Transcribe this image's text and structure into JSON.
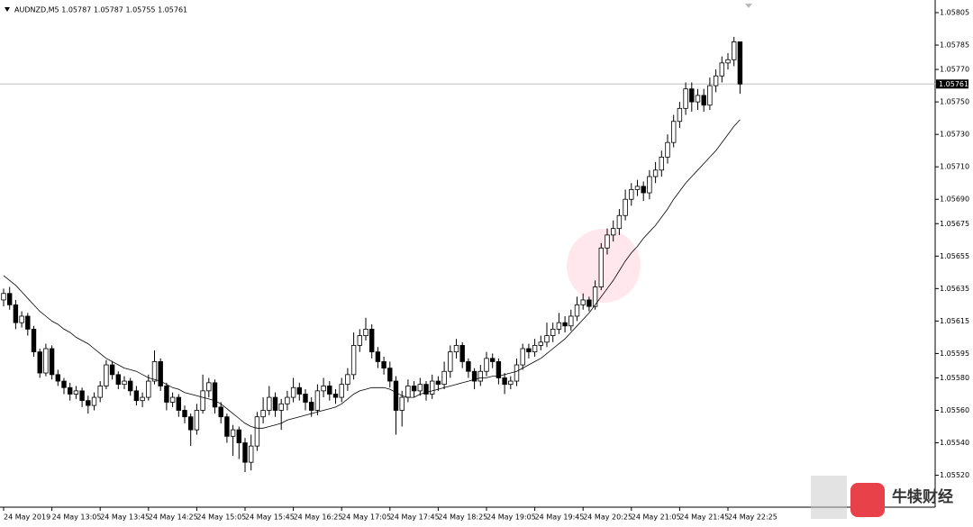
{
  "chart_data": {
    "type": "candlestick",
    "title": "AUDNZD,M5  1.05787 1.05787 1.05755 1.05761",
    "categories": [
      "24 May 2019",
      null,
      null,
      null,
      null,
      null,
      null,
      null,
      "24 May 13:05",
      null,
      null,
      null,
      null,
      null,
      null,
      null,
      "24 May 13:45",
      null,
      null,
      null,
      null,
      null,
      null,
      null,
      "24 May 14:25",
      null,
      null,
      null,
      null,
      null,
      null,
      null,
      "24 May 15:05",
      null,
      null,
      null,
      null,
      null,
      null,
      null,
      "24 May 15:45",
      null,
      null,
      null,
      null,
      null,
      null,
      null,
      "24 May 16:25",
      null,
      null,
      null,
      null,
      null,
      null,
      null,
      "24 May 17:05",
      null,
      null,
      null,
      null,
      null,
      null,
      null,
      "24 May 17:45",
      null,
      null,
      null,
      null,
      null,
      null,
      null,
      "24 May 18:25",
      null,
      null,
      null,
      null,
      null,
      null,
      null,
      "24 May 19:05",
      null,
      null,
      null,
      null,
      null,
      null,
      null,
      "24 May 19:45",
      null,
      null,
      null,
      null,
      null,
      null,
      null,
      "24 May 20:25",
      null,
      null,
      null,
      null,
      null,
      null,
      null,
      "24 May 21:05",
      null,
      null,
      null,
      null,
      null,
      null,
      null,
      "24 May 21:45",
      null,
      null,
      null,
      null,
      null,
      null,
      null,
      "24 May 22:25",
      null,
      null
    ],
    "open": [
      1.05628,
      1.05632,
      1.05625,
      1.05614,
      1.05618,
      1.0561,
      1.05596,
      1.05583,
      1.05598,
      1.05582,
      1.05578,
      1.05574,
      1.0557,
      1.05572,
      1.05566,
      1.05563,
      1.05568,
      1.05575,
      1.05588,
      1.05582,
      1.05576,
      1.05578,
      1.05572,
      1.05566,
      1.05568,
      1.05578,
      1.0559,
      1.05575,
      1.05565,
      1.05568,
      1.0556,
      1.05556,
      1.05548,
      1.0556,
      1.05572,
      1.05577,
      1.05562,
      1.05556,
      1.05544,
      1.05548,
      1.0554,
      1.05528,
      1.05538,
      1.05556,
      1.0556,
      1.05568,
      1.0556,
      1.05564,
      1.05568,
      1.05574,
      1.0557,
      1.05565,
      1.0556,
      1.05572,
      1.05575,
      1.0557,
      1.05568,
      1.05576,
      1.05582,
      1.056,
      1.05606,
      1.0561,
      1.05596,
      1.0559,
      1.05586,
      1.05578,
      1.0556,
      1.05568,
      1.05575,
      1.05572,
      1.05576,
      1.0557,
      1.05578,
      1.05576,
      1.05584,
      1.05596,
      1.056,
      1.0559,
      1.05584,
      1.05578,
      1.05584,
      1.05592,
      1.0559,
      1.0558,
      1.05576,
      1.05578,
      1.05588,
      1.05598,
      1.05596,
      1.056,
      1.05602,
      1.05606,
      1.0561,
      1.05614,
      1.05612,
      1.05618,
      1.05625,
      1.05628,
      1.05624,
      1.05636,
      1.0566,
      1.05668,
      1.05672,
      1.0568,
      1.0569,
      1.05696,
      1.05698,
      1.05694,
      1.05704,
      1.05708,
      1.05716,
      1.05725,
      1.05738,
      1.05746,
      1.05758,
      1.0575,
      1.05754,
      1.05748,
      1.0576,
      1.05766,
      1.05774,
      1.05776,
      1.05787
    ],
    "high": [
      1.05635,
      1.05636,
      1.05628,
      1.05621,
      1.0562,
      1.05612,
      1.05598,
      1.05601,
      1.056,
      1.05585,
      1.0558,
      1.05577,
      1.05575,
      1.05574,
      1.05569,
      1.05571,
      1.05578,
      1.05591,
      1.0559,
      1.05584,
      1.05581,
      1.0558,
      1.05575,
      1.05571,
      1.05582,
      1.05597,
      1.05592,
      1.05577,
      1.05571,
      1.0557,
      1.05563,
      1.05558,
      1.05564,
      1.05582,
      1.0558,
      1.05579,
      1.05565,
      1.05558,
      1.05551,
      1.0555,
      1.05543,
      1.05545,
      1.05559,
      1.05568,
      1.05575,
      1.05571,
      1.05567,
      1.05572,
      1.0558,
      1.05577,
      1.05573,
      1.05568,
      1.05576,
      1.0558,
      1.05578,
      1.05573,
      1.0558,
      1.05586,
      1.05608,
      1.0561,
      1.05617,
      1.05613,
      1.05599,
      1.05593,
      1.0559,
      1.05581,
      1.05572,
      1.05579,
      1.05578,
      1.0558,
      1.05578,
      1.05582,
      1.05581,
      1.0559,
      1.056,
      1.05604,
      1.05602,
      1.05592,
      1.05586,
      1.05588,
      1.05596,
      1.05595,
      1.05592,
      1.05583,
      1.05581,
      1.05592,
      1.05601,
      1.05601,
      1.05604,
      1.05606,
      1.05614,
      1.05614,
      1.0562,
      1.05618,
      1.05622,
      1.0563,
      1.05632,
      1.0563,
      1.0564,
      1.05663,
      1.05672,
      1.05677,
      1.05684,
      1.05696,
      1.057,
      1.05702,
      1.05701,
      1.05708,
      1.05713,
      1.0572,
      1.0573,
      1.05742,
      1.0575,
      1.05762,
      1.05762,
      1.05758,
      1.05758,
      1.05765,
      1.0577,
      1.05778,
      1.0578,
      1.0579,
      1.05787
    ],
    "low": [
      1.05624,
      1.05622,
      1.0561,
      1.05611,
      1.05606,
      1.05593,
      1.0558,
      1.05581,
      1.05579,
      1.05575,
      1.0557,
      1.05566,
      1.05567,
      1.05562,
      1.05558,
      1.0556,
      1.05565,
      1.05573,
      1.05579,
      1.05573,
      1.05573,
      1.05569,
      1.05563,
      1.05562,
      1.05566,
      1.05576,
      1.05572,
      1.0556,
      1.05562,
      1.05556,
      1.05552,
      1.05538,
      1.05545,
      1.05558,
      1.05568,
      1.05558,
      1.05552,
      1.0554,
      1.05532,
      1.0553,
      1.05522,
      1.05523,
      1.05535,
      1.05552,
      1.05557,
      1.05556,
      1.05548,
      1.0556,
      1.05565,
      1.05566,
      1.0556,
      1.05556,
      1.05557,
      1.05568,
      1.05566,
      1.05564,
      1.05565,
      1.05572,
      1.05579,
      1.05596,
      1.05603,
      1.05592,
      1.05586,
      1.05582,
      1.05574,
      1.05545,
      1.0555,
      1.05565,
      1.05568,
      1.05569,
      1.05566,
      1.05567,
      1.05572,
      1.05573,
      1.0558,
      1.05592,
      1.05586,
      1.0558,
      1.05573,
      1.05575,
      1.05581,
      1.05586,
      1.05576,
      1.0557,
      1.05573,
      1.05575,
      1.05585,
      1.05592,
      1.05593,
      1.05597,
      1.05599,
      1.05602,
      1.05607,
      1.05608,
      1.05609,
      1.05615,
      1.05622,
      1.05621,
      1.05622,
      1.05634,
      1.05656,
      1.05664,
      1.05668,
      1.05677,
      1.05686,
      1.05692,
      1.05689,
      1.0569,
      1.057,
      1.05704,
      1.05712,
      1.05722,
      1.05734,
      1.05742,
      1.05744,
      1.05745,
      1.05744,
      1.05745,
      1.05756,
      1.05762,
      1.0577,
      1.05772,
      1.05755
    ],
    "close": [
      1.05632,
      1.05625,
      1.05614,
      1.05618,
      1.0561,
      1.05596,
      1.05583,
      1.05598,
      1.05582,
      1.05578,
      1.05574,
      1.0557,
      1.05572,
      1.05566,
      1.05563,
      1.05568,
      1.05575,
      1.05588,
      1.05582,
      1.05576,
      1.05578,
      1.05572,
      1.05566,
      1.05568,
      1.05578,
      1.0559,
      1.05575,
      1.05565,
      1.05568,
      1.0556,
      1.05556,
      1.05548,
      1.0556,
      1.05572,
      1.05577,
      1.05562,
      1.05556,
      1.05544,
      1.05548,
      1.0554,
      1.05528,
      1.05538,
      1.05556,
      1.0556,
      1.05568,
      1.0556,
      1.05564,
      1.05568,
      1.05574,
      1.0557,
      1.05565,
      1.0556,
      1.05572,
      1.05575,
      1.0557,
      1.05568,
      1.05576,
      1.05582,
      1.056,
      1.05606,
      1.0561,
      1.05596,
      1.0559,
      1.05586,
      1.05578,
      1.0556,
      1.05568,
      1.05575,
      1.05572,
      1.05576,
      1.0557,
      1.05578,
      1.05576,
      1.05584,
      1.05596,
      1.056,
      1.0559,
      1.05584,
      1.05578,
      1.05584,
      1.05592,
      1.0559,
      1.0558,
      1.05576,
      1.05578,
      1.05588,
      1.05598,
      1.05596,
      1.056,
      1.05602,
      1.05606,
      1.0561,
      1.05614,
      1.05612,
      1.05618,
      1.05625,
      1.05628,
      1.05624,
      1.05636,
      1.0566,
      1.05668,
      1.05672,
      1.0568,
      1.0569,
      1.05696,
      1.05698,
      1.05694,
      1.05704,
      1.05708,
      1.05716,
      1.05725,
      1.05738,
      1.05746,
      1.05758,
      1.0575,
      1.05754,
      1.05748,
      1.0576,
      1.05766,
      1.05774,
      1.05776,
      1.05787,
      1.05761
    ],
    "moving_average": {
      "color": "#000000",
      "values": [
        1.05643,
        1.0564,
        1.05637,
        1.05633,
        1.05629,
        1.05625,
        1.05621,
        1.05618,
        1.05615,
        1.05613,
        1.0561,
        1.05608,
        1.05605,
        1.05603,
        1.05601,
        1.05598,
        1.05595,
        1.05592,
        1.0559,
        1.05588,
        1.05586,
        1.05585,
        1.05584,
        1.05582,
        1.0558,
        1.05579,
        1.05578,
        1.05576,
        1.05574,
        1.05573,
        1.05571,
        1.0557,
        1.05569,
        1.05568,
        1.05567,
        1.05566,
        1.05564,
        1.05561,
        1.05558,
        1.05555,
        1.05552,
        1.0555,
        1.05549,
        1.05549,
        1.0555,
        1.05551,
        1.05552,
        1.05554,
        1.05555,
        1.05556,
        1.05557,
        1.05558,
        1.05559,
        1.0556,
        1.05561,
        1.05562,
        1.05564,
        1.05567,
        1.0557,
        1.05572,
        1.05573,
        1.05574,
        1.05574,
        1.05574,
        1.05573,
        1.05571,
        1.05569,
        1.05568,
        1.05568,
        1.0557,
        1.05571,
        1.05572,
        1.05573,
        1.05574,
        1.05575,
        1.05576,
        1.05577,
        1.05578,
        1.05579,
        1.0558,
        1.0558,
        1.05581,
        1.05581,
        1.05582,
        1.05583,
        1.05584,
        1.05586,
        1.05588,
        1.0559,
        1.05592,
        1.05595,
        1.05598,
        1.05601,
        1.05604,
        1.05608,
        1.05612,
        1.05616,
        1.0562,
        1.05625,
        1.0563,
        1.05635,
        1.0564,
        1.05646,
        1.05652,
        1.05657,
        1.05661,
        1.05666,
        1.0567,
        1.05674,
        1.05679,
        1.05684,
        1.0569,
        1.05695,
        1.057,
        1.05704,
        1.05708,
        1.05712,
        1.05716,
        1.0572,
        1.05725,
        1.0573,
        1.05735,
        1.05739
      ]
    },
    "last_price": 1.05761,
    "up_color": "#ffffff",
    "down_color": "#000000",
    "ylim": [
      1.05502,
      1.0581
    ],
    "yticks": [
      1.05805,
      1.05785,
      {
        "value": 1.0577,
        "label": "1.05770"
      },
      {
        "value": 1.0575,
        "label": "1.05750"
      },
      {
        "value": 1.0573,
        "label": "1.05730"
      },
      {
        "value": 1.0571,
        "label": "1.05710"
      },
      {
        "value": 1.0569,
        "label": "1.05690"
      },
      1.05675,
      1.05655,
      1.05635,
      1.05615,
      1.05595,
      {
        "value": 1.0558,
        "label": "1.05580"
      },
      {
        "value": 1.0556,
        "label": "1.05560"
      },
      {
        "value": 1.0554,
        "label": "1.05540"
      },
      {
        "value": 1.0552,
        "label": "1.05520"
      }
    ]
  },
  "watermark": "牛犊财经"
}
